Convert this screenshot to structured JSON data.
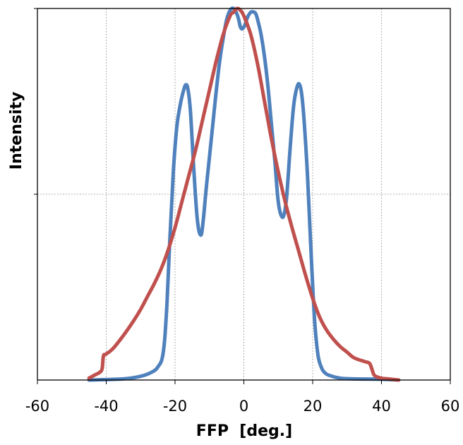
{
  "chart_data": {
    "type": "line",
    "title": "",
    "xlabel": "FFP  [deg.]",
    "ylabel": "Intensity",
    "xlim": [
      -60,
      60
    ],
    "ylim": [
      0,
      1
    ],
    "x_ticks": [
      -60,
      -40,
      -20,
      0,
      20,
      40,
      60
    ],
    "x_tick_labels": [
      "-60",
      "-40",
      "-20",
      "0",
      "20",
      "40",
      "60"
    ],
    "y_gridlines": [
      0.5,
      1.0
    ],
    "x_gridlines": [
      -40,
      -20,
      0,
      20,
      40
    ],
    "grid": true,
    "legend": "none",
    "series": [
      {
        "color": "#4F81BD",
        "x": [
          -45,
          -35,
          -30,
          -27,
          -25,
          -23.5,
          -22.5,
          -21.5,
          -20.5,
          -19.5,
          -18.5,
          -17.5,
          -16.8,
          -16.2,
          -15.5,
          -14.5,
          -13.5,
          -12.5,
          -11.8,
          -11,
          -10,
          -9,
          -8,
          -7,
          -6,
          -5,
          -4,
          -3,
          -2,
          -1.5,
          -1,
          -0.5,
          0,
          0.5,
          1,
          2,
          3,
          3.5,
          4,
          5,
          6,
          7,
          8,
          9,
          10,
          11,
          11.8,
          12.5,
          13.5,
          14.5,
          15.5,
          16.2,
          16.8,
          17.5,
          18.5,
          19.5,
          20.5,
          21.5,
          22.5,
          23.5,
          25,
          28,
          32,
          40,
          45
        ],
        "values": [
          0.0,
          0.003,
          0.01,
          0.02,
          0.035,
          0.07,
          0.18,
          0.38,
          0.56,
          0.68,
          0.74,
          0.78,
          0.795,
          0.78,
          0.72,
          0.56,
          0.43,
          0.39,
          0.43,
          0.51,
          0.6,
          0.69,
          0.78,
          0.86,
          0.92,
          0.97,
          0.995,
          1.0,
          0.985,
          0.97,
          0.95,
          0.945,
          0.95,
          0.96,
          0.975,
          0.99,
          0.99,
          0.985,
          0.97,
          0.93,
          0.87,
          0.79,
          0.69,
          0.59,
          0.48,
          0.44,
          0.45,
          0.5,
          0.63,
          0.74,
          0.79,
          0.795,
          0.77,
          0.7,
          0.55,
          0.35,
          0.17,
          0.07,
          0.035,
          0.02,
          0.012,
          0.005,
          0.003,
          0.002,
          0.0
        ]
      },
      {
        "color": "#C0504D",
        "x": [
          -45,
          -43,
          -42,
          -41.2,
          -40.8,
          -40,
          -38,
          -35,
          -32,
          -30,
          -28,
          -26,
          -24,
          -22,
          -20,
          -18,
          -16,
          -14,
          -12,
          -10,
          -8,
          -6,
          -4,
          -3,
          -2,
          -1,
          0,
          2,
          4,
          6,
          8,
          10,
          12,
          14,
          16,
          18,
          20,
          22,
          24,
          26,
          28,
          30,
          32,
          35,
          36.5,
          37.2,
          38,
          40,
          42,
          45
        ],
        "values": [
          0.005,
          0.015,
          0.02,
          0.03,
          0.065,
          0.07,
          0.085,
          0.12,
          0.16,
          0.19,
          0.225,
          0.26,
          0.3,
          0.35,
          0.41,
          0.48,
          0.55,
          0.62,
          0.7,
          0.78,
          0.86,
          0.93,
          0.98,
          0.99,
          1.0,
          0.995,
          0.98,
          0.93,
          0.85,
          0.75,
          0.65,
          0.56,
          0.48,
          0.41,
          0.345,
          0.28,
          0.22,
          0.17,
          0.135,
          0.11,
          0.09,
          0.075,
          0.06,
          0.05,
          0.045,
          0.03,
          0.012,
          0.005,
          0.003,
          0.0
        ]
      }
    ]
  }
}
